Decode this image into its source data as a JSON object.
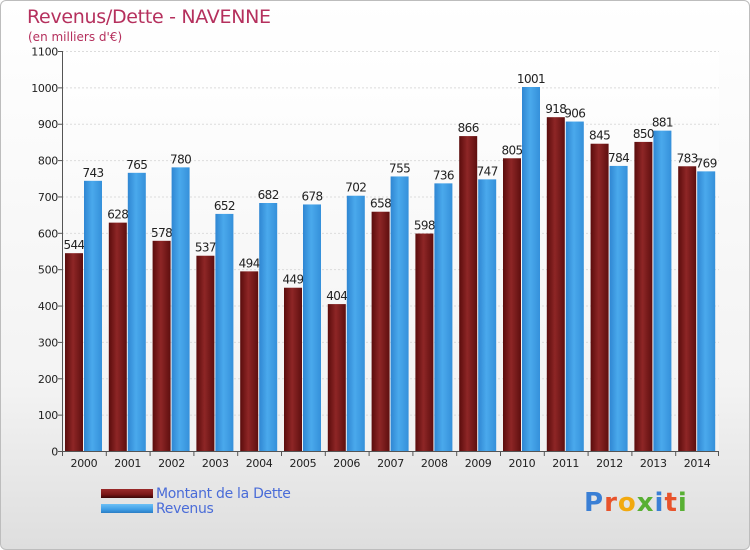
{
  "title": "Revenus/Dette - NAVENNE",
  "subtitle": "(en milliers d'€)",
  "logo": {
    "letters": [
      "P",
      "r",
      "o",
      "x",
      "i",
      "t",
      "i"
    ],
    "colors": [
      "#3a7fd5",
      "#e8532b",
      "#f2a90f",
      "#58b033",
      "#3a7fd5",
      "#e8532b",
      "#58b033"
    ]
  },
  "colors": {
    "dette": "#7a1717",
    "revenus": "#3f9ee6",
    "title": "#b5305d"
  },
  "chart_data": {
    "type": "bar",
    "categories": [
      "2000",
      "2001",
      "2002",
      "2003",
      "2004",
      "2005",
      "2006",
      "2007",
      "2008",
      "2009",
      "2010",
      "2011",
      "2012",
      "2013",
      "2014"
    ],
    "series": [
      {
        "name": "Montant de la Dette",
        "values": [
          544,
          628,
          578,
          537,
          494,
          449,
          404,
          658,
          598,
          866,
          805,
          918,
          845,
          850,
          783
        ]
      },
      {
        "name": "Revenus",
        "values": [
          743,
          765,
          780,
          652,
          682,
          678,
          702,
          755,
          736,
          747,
          1001,
          906,
          784,
          881,
          769
        ]
      }
    ],
    "ylim": [
      0,
      1100
    ],
    "yticks": [
      0,
      100,
      200,
      300,
      400,
      500,
      600,
      700,
      800,
      900,
      1000,
      1100
    ],
    "grid": true,
    "legend_position": "bottom-left"
  }
}
